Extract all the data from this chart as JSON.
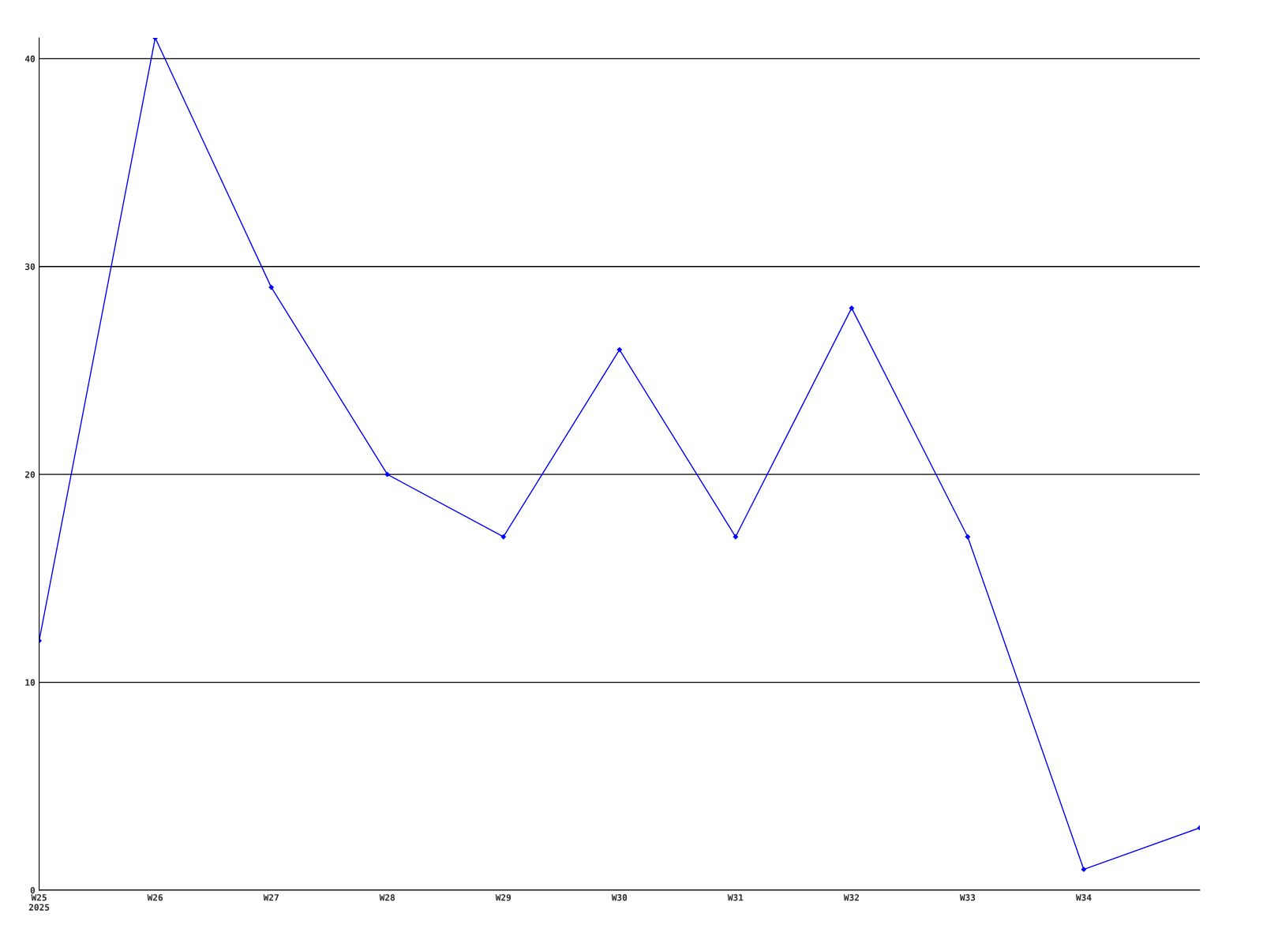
{
  "chart_data": {
    "type": "line",
    "categories": [
      "W25\n2025",
      "W26",
      "W27",
      "W28",
      "W29",
      "W30",
      "W31",
      "W32",
      "W33",
      "W34",
      null
    ],
    "series": [
      {
        "color": "#0000ff",
        "values": [
          12,
          41,
          29,
          20,
          17,
          26,
          17,
          28,
          17,
          1,
          3
        ]
      }
    ],
    "ylim": [
      0,
      41
    ],
    "yticks": [
      0,
      10,
      20,
      30,
      40
    ],
    "grid": "y",
    "marker": "diamond",
    "line_style": "solid",
    "legend": false
  }
}
